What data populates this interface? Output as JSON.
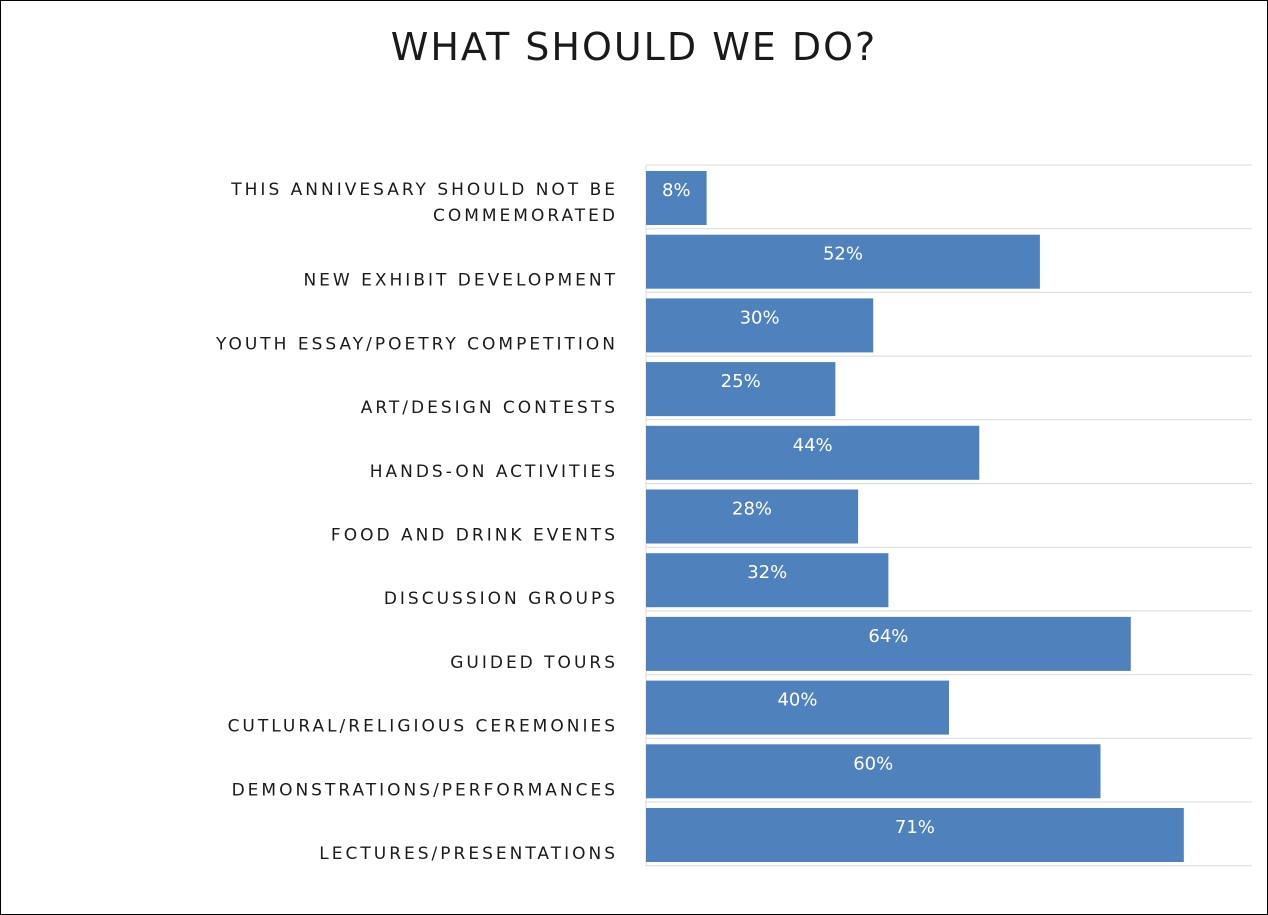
{
  "chart_data": {
    "type": "bar",
    "orientation": "horizontal",
    "title": "WHAT SHOULD WE DO?",
    "categories": [
      [
        "THIS ANNIVESARY SHOULD NOT BE",
        "COMMEMORATED"
      ],
      [
        "NEW EXHIBIT DEVELOPMENT"
      ],
      [
        "YOUTH ESSAY/POETRY COMPETITION"
      ],
      [
        "ART/DESIGN CONTESTS"
      ],
      [
        "HANDS-ON ACTIVITIES"
      ],
      [
        "FOOD AND DRINK EVENTS"
      ],
      [
        "DISCUSSION GROUPS"
      ],
      [
        "GUIDED TOURS"
      ],
      [
        "CUTLURAL/RELIGIOUS CEREMONIES"
      ],
      [
        "DEMONSTRATIONS/PERFORMANCES"
      ],
      [
        "LECTURES/PRESENTATIONS"
      ]
    ],
    "values": [
      8,
      52,
      30,
      25,
      44,
      28,
      32,
      64,
      40,
      60,
      71
    ],
    "data_labels": [
      "8%",
      "52%",
      "30%",
      "25%",
      "44%",
      "28%",
      "32%",
      "64%",
      "40%",
      "60%",
      "71%"
    ],
    "value_unit": "%",
    "xlim": [
      0,
      80
    ],
    "grid": true,
    "legend": "none",
    "bar_color": "#4f81bd",
    "grid_color": "#d9d9d9"
  }
}
